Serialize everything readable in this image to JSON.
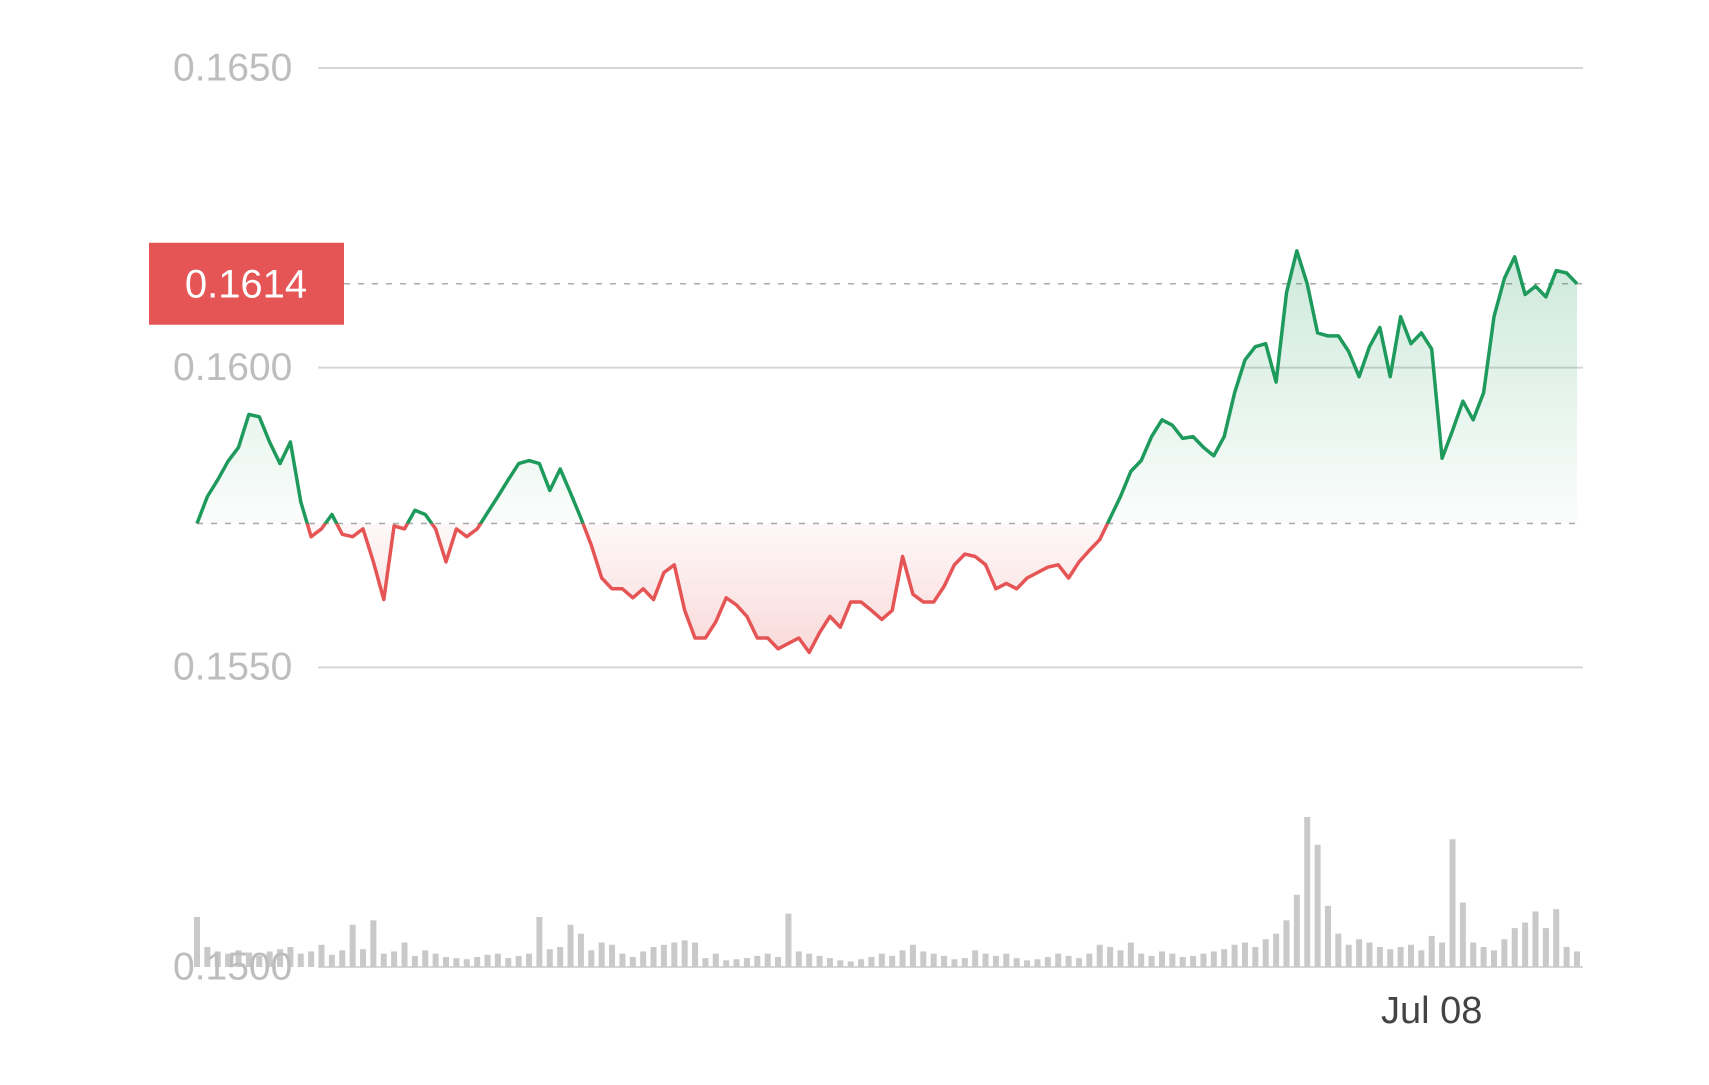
{
  "chart_data": {
    "type": "line",
    "ylim": [
      0.15,
      0.165
    ],
    "yticks": [
      {
        "value": 0.165,
        "label": "0.1650"
      },
      {
        "value": 0.16,
        "label": "0.1600"
      },
      {
        "value": 0.155,
        "label": "0.1550"
      },
      {
        "value": 0.15,
        "label": "0.1500"
      }
    ],
    "grid": true,
    "baseline": 0.1574,
    "last_price": {
      "value": 0.1614,
      "label": "0.1614"
    },
    "up_color": "#1e9a5c",
    "down_color": "#e65555",
    "volume_color": "#c9c9c9",
    "categories": [
      null,
      null,
      null,
      null,
      null,
      null,
      null,
      null,
      null,
      null,
      null,
      null,
      null,
      null,
      null,
      null,
      null,
      null,
      null,
      null,
      null,
      null,
      null,
      null,
      null,
      null,
      null,
      null,
      null,
      null,
      null,
      null,
      null,
      null,
      null,
      null,
      null,
      null,
      null,
      null,
      null,
      null,
      null,
      null,
      null,
      null,
      null,
      null,
      null,
      null,
      null,
      null,
      null,
      null,
      null,
      null,
      null,
      null,
      null,
      null,
      null,
      null,
      null,
      null,
      null,
      null,
      null,
      null,
      null,
      null,
      null,
      null,
      null,
      null,
      null,
      null,
      null,
      null,
      null,
      null,
      null,
      null,
      null,
      null,
      null,
      null,
      null,
      null,
      null,
      null,
      null,
      null,
      null,
      null,
      null,
      null,
      null,
      null,
      null,
      null,
      null,
      null,
      null,
      null,
      null,
      null,
      null,
      null,
      null,
      null,
      null,
      null,
      null,
      null,
      null,
      null,
      null,
      null,
      null,
      "Jul 08",
      null,
      null,
      null,
      null,
      null,
      null,
      null,
      null,
      null,
      null,
      null,
      null,
      null,
      null
    ],
    "values": [
      0.1574,
      0.15785,
      0.15813,
      0.15844,
      0.15867,
      0.15922,
      0.15918,
      0.15876,
      0.1584,
      0.15876,
      0.15776,
      0.15718,
      0.15731,
      0.15755,
      0.15722,
      0.15718,
      0.15731,
      0.15676,
      0.15613,
      0.15736,
      0.15731,
      0.15762,
      0.15755,
      0.15731,
      0.15676,
      0.15731,
      0.15718,
      0.15731,
      0.15758,
      0.15785,
      0.15813,
      0.1584,
      0.15845,
      0.1584,
      0.15795,
      0.15831,
      0.15791,
      0.15749,
      0.15704,
      0.15649,
      0.15631,
      0.15631,
      0.15616,
      0.15631,
      0.15613,
      0.15658,
      0.15671,
      0.15595,
      0.15549,
      0.15549,
      0.15576,
      0.15616,
      0.15604,
      0.15585,
      0.15549,
      0.15549,
      0.15531,
      0.1554,
      0.15549,
      0.15525,
      0.15558,
      0.15585,
      0.15567,
      0.15609,
      0.15609,
      0.15595,
      0.1558,
      0.15595,
      0.15685,
      0.15622,
      0.15609,
      0.15609,
      0.15635,
      0.15671,
      0.15689,
      0.15685,
      0.15671,
      0.15631,
      0.1564,
      0.15631,
      0.15649,
      0.15658,
      0.15667,
      0.15671,
      0.15649,
      0.15676,
      0.15695,
      0.15713,
      0.15749,
      0.15785,
      0.15827,
      0.15845,
      0.15885,
      0.15913,
      0.15904,
      0.15882,
      0.15885,
      0.15867,
      0.15853,
      0.15885,
      0.15958,
      0.16013,
      0.16035,
      0.1604,
      0.15976,
      0.16125,
      0.16195,
      0.1614,
      0.16058,
      0.16053,
      0.16053,
      0.16027,
      0.15985,
      0.16035,
      0.16067,
      0.15985,
      0.16085,
      0.1604,
      0.16058,
      0.16031,
      0.15849,
      0.15895,
      0.15944,
      0.15913,
      0.15958,
      0.16085,
      0.16149,
      0.16185,
      0.16122,
      0.16136,
      0.16118,
      0.16162,
      0.16158,
      0.1614
    ],
    "volume": [
      45,
      18,
      14,
      12,
      15,
      13,
      10,
      14,
      16,
      18,
      12,
      14,
      20,
      11,
      15,
      38,
      16,
      42,
      12,
      14,
      22,
      10,
      15,
      12,
      9,
      8,
      7,
      9,
      11,
      12,
      8,
      10,
      12,
      45,
      16,
      18,
      38,
      30,
      15,
      22,
      20,
      12,
      9,
      14,
      18,
      20,
      22,
      24,
      22,
      8,
      12,
      6,
      7,
      8,
      10,
      12,
      9,
      48,
      14,
      12,
      10,
      8,
      6,
      5,
      7,
      9,
      12,
      10,
      15,
      20,
      14,
      12,
      10,
      7,
      8,
      15,
      12,
      10,
      12,
      8,
      6,
      7,
      9,
      12,
      10,
      8,
      12,
      20,
      18,
      15,
      22,
      12,
      10,
      14,
      12,
      9,
      10,
      12,
      14,
      16,
      20,
      22,
      18,
      25,
      30,
      42,
      65,
      135,
      110,
      55,
      30,
      20,
      25,
      22,
      18,
      16,
      18,
      20,
      15,
      28,
      22,
      115,
      58,
      22,
      18,
      15,
      25,
      35,
      40,
      50,
      35,
      52,
      18,
      14
    ]
  }
}
